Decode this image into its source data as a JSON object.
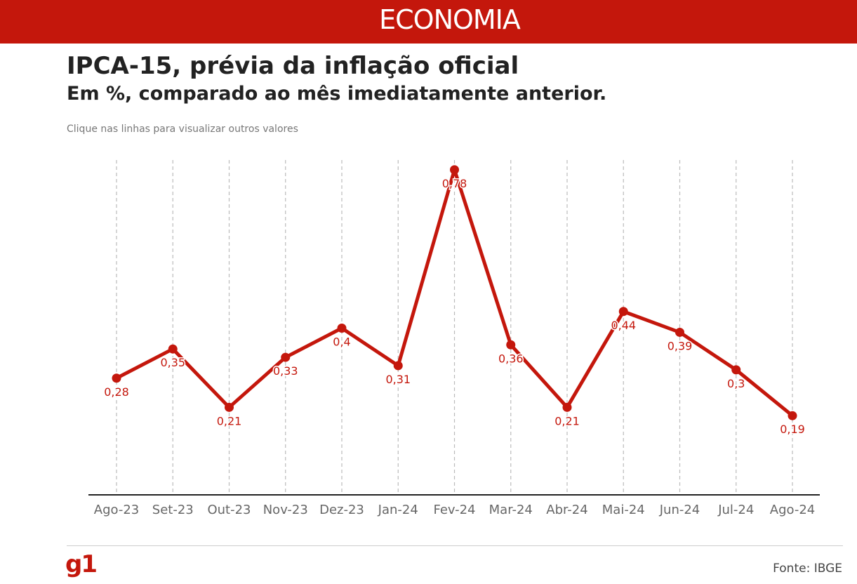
{
  "header": {
    "section": "ECONOMIA"
  },
  "title": "IPCA-15, prévia da inflação oficial",
  "subtitle": "Em %, comparado ao mês imediatamente anterior.",
  "hint": "Clique nas linhas para visualizar outros valores",
  "footer": {
    "logo": "g1",
    "source": "Fonte: IBGE"
  },
  "colors": {
    "brand": "#c4170c",
    "line": "#c4170c",
    "axis": "#222222",
    "grid": "#bbbbbb"
  },
  "chart_data": {
    "type": "line",
    "title": "IPCA-15, prévia da inflação oficial",
    "subtitle": "Em %, comparado ao mês imediatamente anterior.",
    "xlabel": "",
    "ylabel": "",
    "ylim": [
      0,
      0.8
    ],
    "grid": "vertical dashed",
    "categories": [
      "Ago-23",
      "Set-23",
      "Out-23",
      "Nov-23",
      "Dez-23",
      "Jan-24",
      "Fev-24",
      "Mar-24",
      "Abr-24",
      "Mai-24",
      "Jun-24",
      "Jul-24",
      "Ago-24"
    ],
    "values": [
      0.28,
      0.35,
      0.21,
      0.33,
      0.4,
      0.31,
      0.78,
      0.36,
      0.21,
      0.44,
      0.39,
      0.3,
      0.19
    ],
    "labels": [
      "0,28",
      "0,35",
      "0,21",
      "0,33",
      "0,4",
      "0,31",
      "0,78",
      "0,36",
      "0,21",
      "0,44",
      "0,39",
      "0,3",
      "0,19"
    ]
  }
}
